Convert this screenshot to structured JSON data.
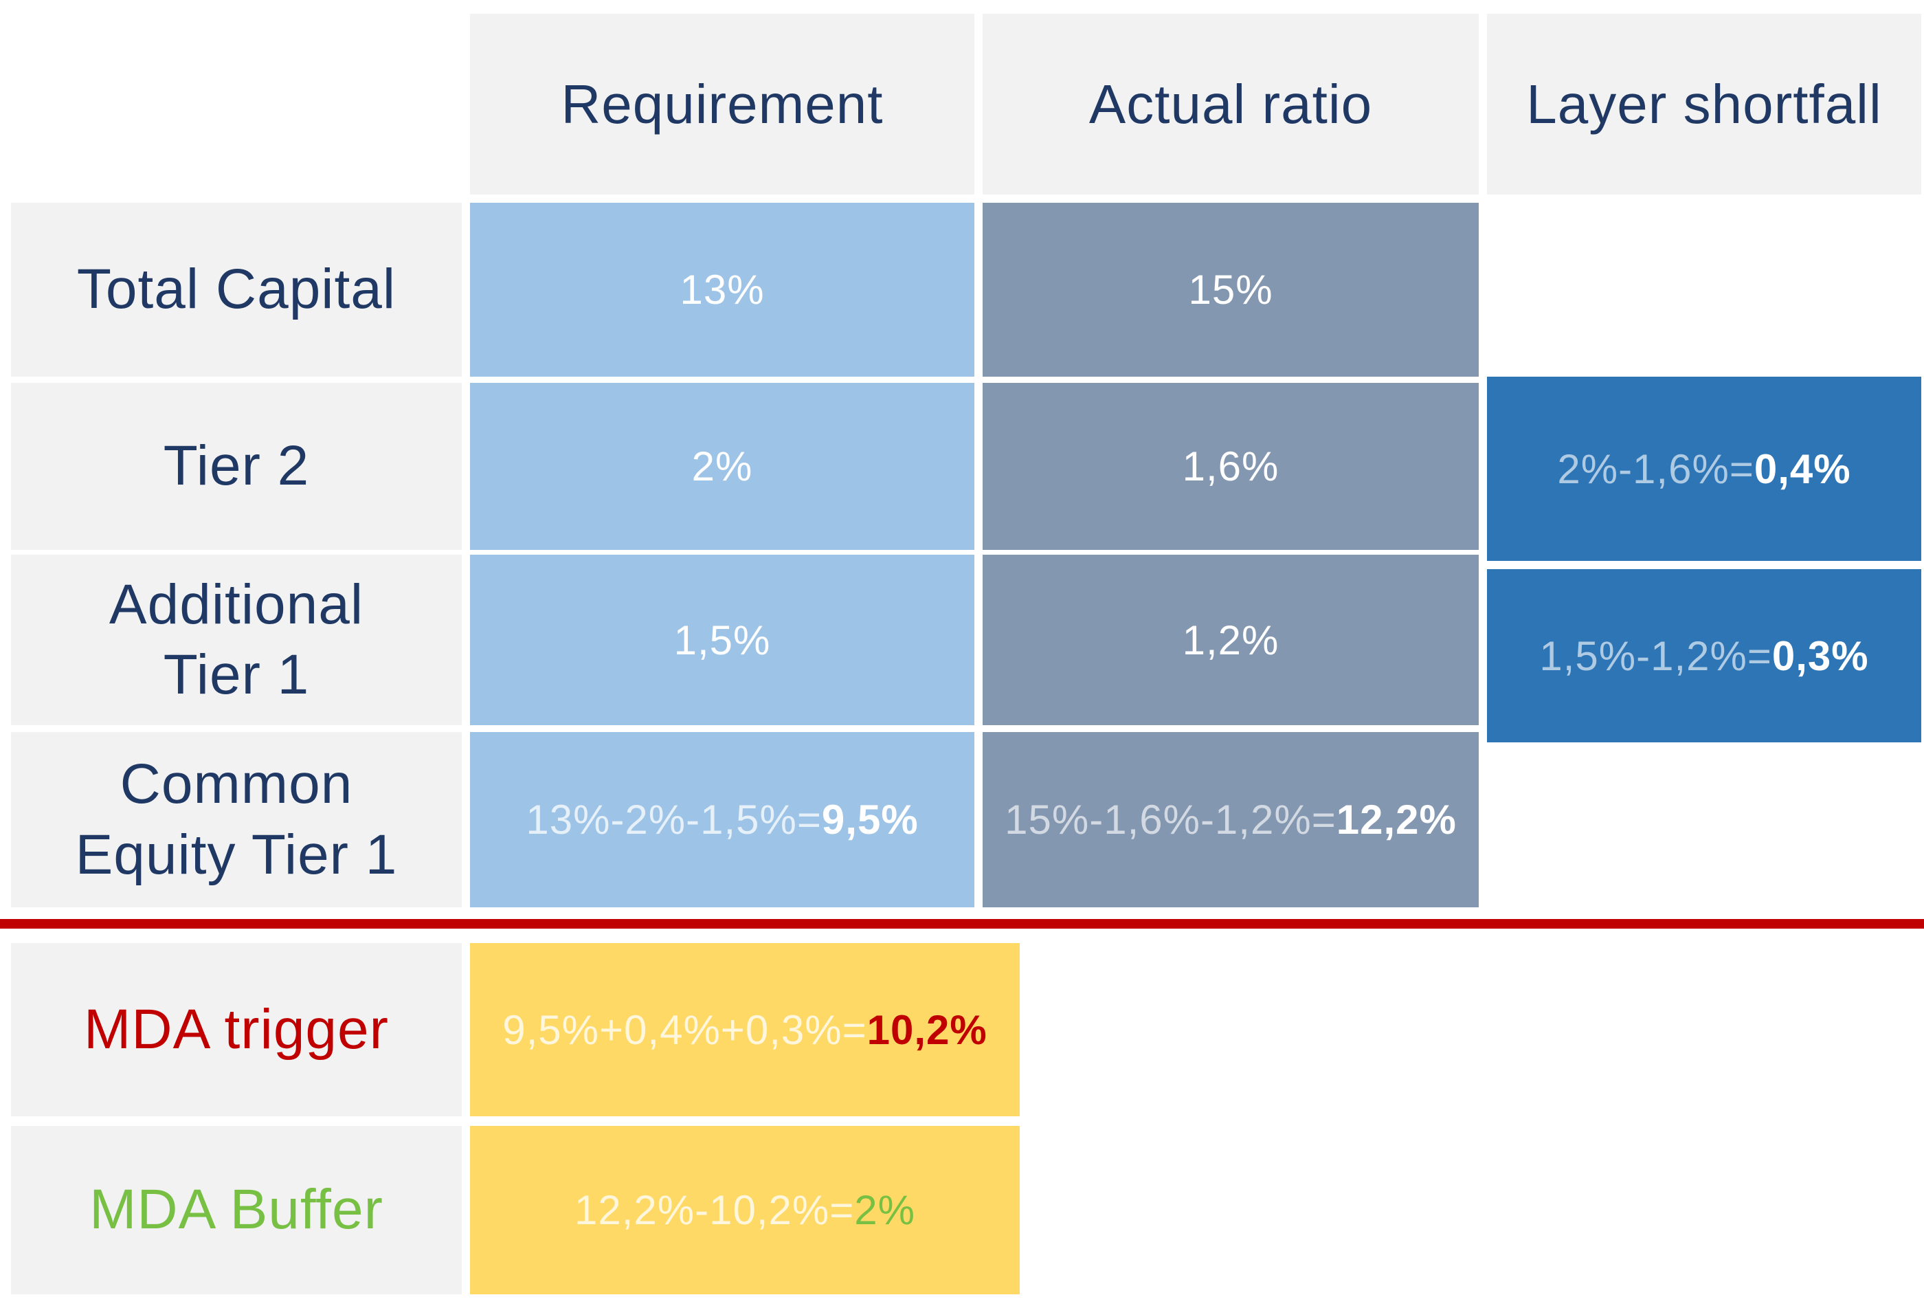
{
  "columns": {
    "requirement": "Requirement",
    "actual_ratio": "Actual ratio",
    "layer_shortfall": "Layer shortfall"
  },
  "rows": {
    "total_capital": {
      "label": "Total Capital",
      "requirement": "13%",
      "actual": "15%"
    },
    "tier2": {
      "label": "Tier 2",
      "requirement": "2%",
      "actual": "1,6%",
      "shortfall_formula": "2%-1,6%=",
      "shortfall_result": "0,4%"
    },
    "additional_tier1": {
      "label": "Additional\nTier 1",
      "requirement": "1,5%",
      "actual": "1,2%",
      "shortfall_formula": "1,5%-1,2%=",
      "shortfall_result": "0,3%"
    },
    "cet1": {
      "label": "Common\nEquity Tier 1",
      "requirement_formula": "13%-2%-1,5%=",
      "requirement_result": "9,5%",
      "actual_formula": "15%-1,6%-1,2%=",
      "actual_result": "12,2%"
    },
    "mda_trigger": {
      "label": "MDA trigger",
      "formula": "9,5%+0,4%+0,3%=",
      "result": "10,2%"
    },
    "mda_buffer": {
      "label": "MDA Buffer",
      "formula": "12,2%-10,2%=",
      "result": "2%"
    }
  },
  "colors": {
    "gray": "#F2F2F2",
    "light_blue": "#9DC3E6",
    "slate_blue": "#8497B0",
    "dark_blue": "#2E75B6",
    "yellow": "#FFD966",
    "navy": "#1F3864",
    "red": "#C00000",
    "green": "#77C043"
  }
}
